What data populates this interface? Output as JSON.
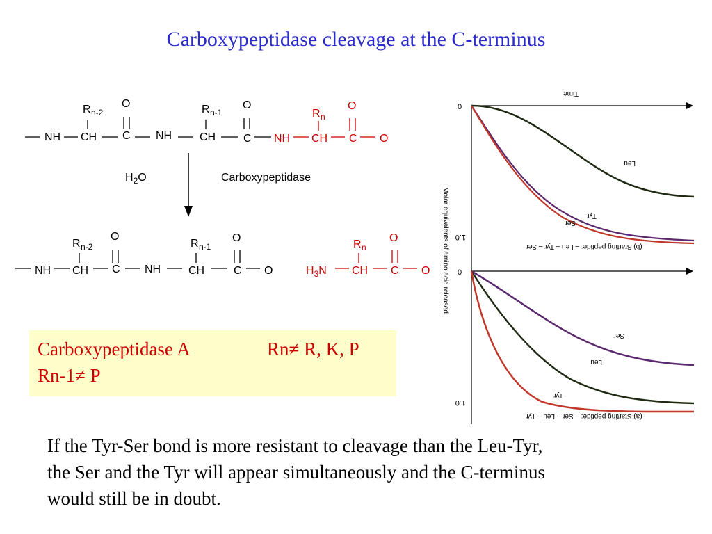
{
  "title": "Carboxypeptidase cleavage at the C-terminus",
  "scheme": {
    "top_row": {
      "r_groups": [
        "R",
        "n-2",
        "R",
        "n-1",
        "R",
        "n"
      ],
      "atoms": [
        "NH",
        "CH",
        "C",
        "O",
        "NH",
        "CH",
        "C",
        "O",
        "NH",
        "CH",
        "C",
        "O",
        "O"
      ]
    },
    "reagent": "H",
    "reagent_sub": "2",
    "reagent_tail": "O",
    "enzyme": "Carboxypeptidase",
    "bottom_row": {
      "atoms_left": [
        "NH",
        "CH",
        "C",
        "O",
        "NH",
        "CH",
        "C",
        "O",
        "O"
      ],
      "free_aa": {
        "h": "H",
        "h_sub": "3",
        "n": "N",
        "ch": "CH",
        "c": "C",
        "o_top": "O",
        "o": "O",
        "r": "R",
        "r_sub": "n"
      }
    }
  },
  "enzyme_box": {
    "line1_a": "Carboxypeptidase A",
    "line1_b": "Rn≠ R, K, P",
    "line2": "Rn-1≠ P"
  },
  "paragraph": [
    "If the Tyr-Ser bond is more resistant to cleavage than the Leu-Tyr,",
    "the Ser and the Tyr will appear simultaneously and the C-terminus",
    "would still be in doubt."
  ],
  "graphs": {
    "time_label": "Time",
    "y_axis_label": "Molar equivalents of amino acid released",
    "zero": "0",
    "one": "1.0",
    "panel_b_caption": "(b)  Starting peptide: – Leu – Tyr – Ser",
    "panel_a_caption": "(a)  Starting peptide: – Ser – Leu – Tyr",
    "colors": {
      "leu": "#1f2a14",
      "tyr": "#c0392b",
      "ser": "#5b2a6e"
    },
    "panel_b_labels": [
      "Leu",
      "Tyr",
      "Ser"
    ],
    "panel_a_labels": [
      "Ser",
      "Leu",
      "Tyr"
    ]
  }
}
